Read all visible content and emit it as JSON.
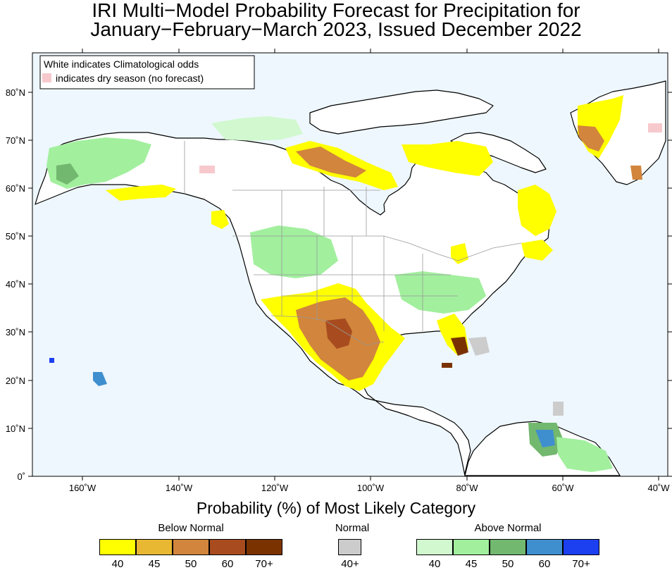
{
  "title": {
    "line1": "IRI Multi−Model Probability Forecast for Precipitation for",
    "line2": "January−February−March 2023, Issued December 2022"
  },
  "map_legend": {
    "note1": "White indicates Climatological odds",
    "note2": "indicates dry season (no forecast)",
    "dry_color": "#f7c9cd"
  },
  "axes": {
    "lat_labels": [
      "0˚",
      "10˚N",
      "20˚N",
      "30˚N",
      "40˚N",
      "50˚N",
      "60˚N",
      "70˚N",
      "80˚N"
    ],
    "lon_labels": [
      "160˚W",
      "140˚W",
      "120˚W",
      "100˚W",
      "80˚W",
      "60˚W",
      "40˚W"
    ]
  },
  "colorbar": {
    "title": "Probability (%) of Most Likely Category",
    "below": {
      "label": "Below Normal",
      "colors": [
        "#ffff00",
        "#e8b833",
        "#d2853c",
        "#a84c1f",
        "#7a3300"
      ],
      "ticks": [
        "40",
        "45",
        "50",
        "60",
        "70+"
      ]
    },
    "normal": {
      "label": "Normal",
      "colors": [
        "#cccccc"
      ],
      "ticks": [
        "40+"
      ]
    },
    "above": {
      "label": "Above Normal",
      "colors": [
        "#d1f8cf",
        "#a2ef9e",
        "#72b86f",
        "#3f8fcf",
        "#1c3ff0"
      ],
      "ticks": [
        "40",
        "45",
        "50",
        "60",
        "70+"
      ]
    }
  }
}
